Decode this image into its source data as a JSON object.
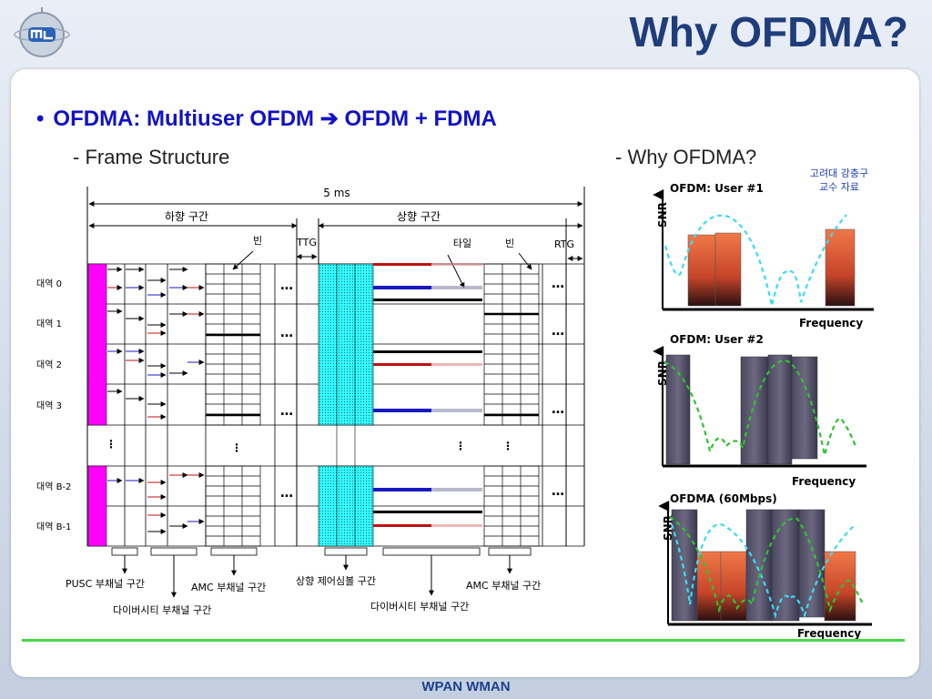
{
  "slide": {
    "title": "Why OFDMA?",
    "bullet": "OFDMA: Multiuser OFDM ➔ OFDM + FDMA",
    "left_subtitle": "- Frame Structure",
    "right_subtitle": "- Why OFDMA?",
    "credit_line1": "고려대 강충구",
    "credit_line2": "교수 자료",
    "footer": "WPAN WMAN"
  },
  "frame": {
    "duration": "5 ms",
    "downlink": "하향 구간",
    "uplink": "상향 구간",
    "ttg": "TTG",
    "rtg": "RTG",
    "bin_left": "빈",
    "tile": "타일",
    "bin_right": "빈",
    "bands": [
      "대역 0",
      "대역 1",
      "대역 2",
      "대역 3",
      "대역 B-2",
      "대역 B-1"
    ],
    "vdots": "⋮",
    "ellipsis": "…",
    "bottom_labels": {
      "pusc": "PUSC 부채널 구간",
      "diversity_dl": "다이버시티 부채널 구간",
      "amc_dl": "AMC 부채널 구간",
      "ul_control": "상향 제어심볼 구간",
      "diversity_ul": "다이버시티 부채널 구간",
      "amc_ul": "AMC 부채널 구간"
    }
  },
  "charts": {
    "ylabel": "SNR",
    "xlabel": "Frequency",
    "chart1_title": "OFDM: User #1",
    "chart2_title": "OFDM: User #2",
    "chart3_title": "OFDMA (60Mbps)"
  },
  "colors": {
    "title": "#1f3d7a",
    "bullet": "#1212c4",
    "magenta": "#ff00ff",
    "cyan": "#33ffff",
    "orange": "#e86a3e",
    "purple": "#5e5a70",
    "curve_cyan": "#3ddcf0",
    "curve_green": "#2fc42f",
    "footer_line": "#48d648"
  }
}
